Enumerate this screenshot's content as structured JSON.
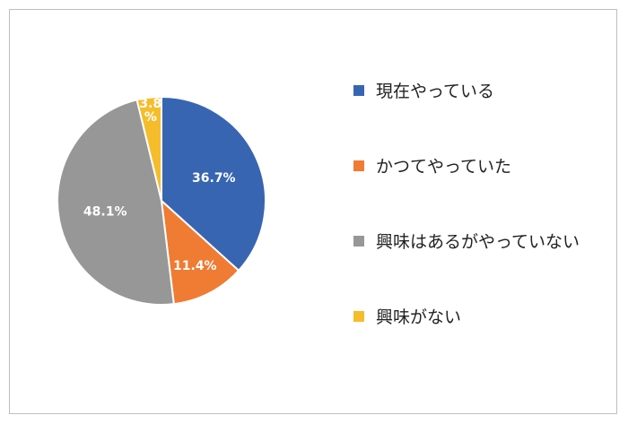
{
  "chart_data": {
    "type": "pie",
    "title": "",
    "categories": [
      "現在やっている",
      "かつてやっていた",
      "興味はあるがやっていない",
      "興味がない"
    ],
    "values": [
      36.7,
      11.4,
      48.1,
      3.8
    ],
    "data_labels": [
      "36.7%",
      "11.4%",
      "48.1%",
      "3.8\n%"
    ],
    "colors": [
      "#3865b1",
      "#f07b33",
      "#979797",
      "#f5bd2b"
    ],
    "legend_position": "right",
    "start_angle": "12 o'clock",
    "direction": "clockwise"
  }
}
